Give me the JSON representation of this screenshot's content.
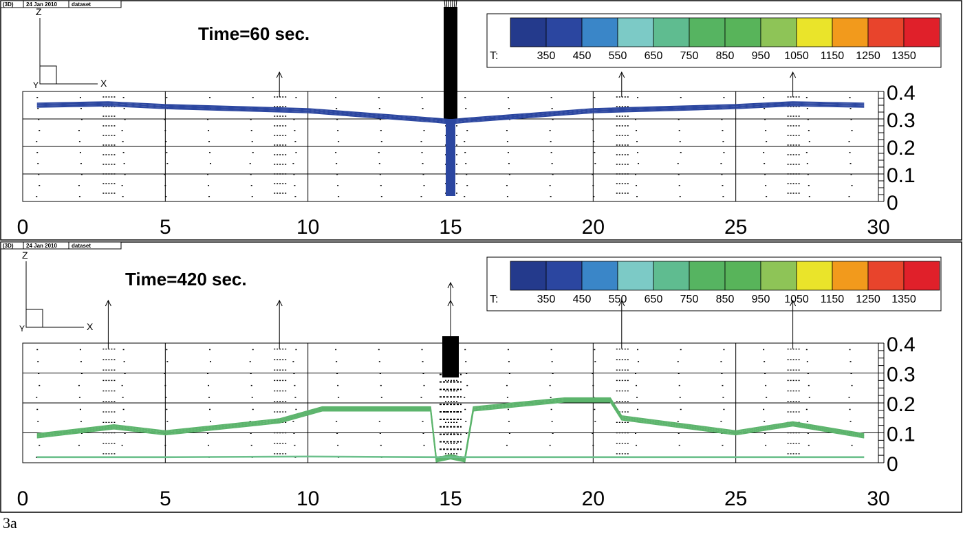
{
  "figure_label": "3a",
  "colors": {
    "series_t60": "#2b46a0",
    "series_t420": "#5cb46c",
    "series_t420_bottom": "#6cc08c",
    "arrow": "#000000"
  },
  "legend": {
    "prefix": "T:",
    "ticks": [
      "350",
      "450",
      "550",
      "650",
      "750",
      "850",
      "950",
      "1050",
      "1150",
      "1250",
      "1350"
    ],
    "colors": [
      "#243a8c",
      "#2b46a0",
      "#3a86c8",
      "#7ccac6",
      "#5fbc90",
      "#56b461",
      "#58b45a",
      "#8ec457",
      "#eae42a",
      "#f29a1c",
      "#e8442c",
      "#e0202a"
    ]
  },
  "chart_data": [
    {
      "type": "line",
      "header": {
        "tag": "(3D)",
        "date": "24 Jan 2010",
        "name": "dataset"
      },
      "title": "Time=60 sec.",
      "axes_triad": {
        "vertical": "Z",
        "horizontal": "X",
        "depth": "Y"
      },
      "xlim": [
        0,
        30
      ],
      "ylim": [
        0,
        0.4
      ],
      "x_ticks": [
        "0",
        "5",
        "10",
        "15",
        "20",
        "25",
        "30"
      ],
      "y_ticks": [
        "0",
        "0.1",
        "0.2",
        "0.3",
        "0.4"
      ],
      "grid": true,
      "series": [
        {
          "color": "#2b46a0",
          "x": [
            0.5,
            3,
            5,
            10,
            14.5,
            15,
            15.5,
            20,
            25,
            27,
            29.5
          ],
          "y": [
            0.35,
            0.355,
            0.345,
            0.33,
            0.295,
            0.29,
            0.295,
            0.33,
            0.345,
            0.355,
            0.35
          ]
        }
      ],
      "jet": {
        "x": 15,
        "y_bottom": 0.02,
        "y_top": 0.35
      },
      "vectors": {
        "columns": [
          3,
          9,
          15,
          21,
          27
        ],
        "tall_arrow_columns": [
          9,
          21,
          27
        ]
      }
    },
    {
      "type": "line",
      "header": {
        "tag": "(3D)",
        "date": "24 Jan 2010",
        "name": "dataset"
      },
      "title": "Time=420 sec.",
      "axes_triad": {
        "vertical": "Z",
        "horizontal": "X",
        "depth": "Y"
      },
      "xlim": [
        0,
        30
      ],
      "ylim": [
        0,
        0.4
      ],
      "x_ticks": [
        "0",
        "5",
        "10",
        "15",
        "20",
        "25",
        "30"
      ],
      "y_ticks": [
        "0",
        "0.1",
        "0.2",
        "0.3",
        "0.4"
      ],
      "grid": true,
      "series": [
        {
          "color": "#5cb46c",
          "x": [
            0.5,
            3.2,
            5,
            9,
            10.5,
            14.3,
            14.5,
            15,
            15.5,
            15.8,
            19,
            20.6,
            21,
            25,
            27,
            29.5
          ],
          "y": [
            0.09,
            0.12,
            0.1,
            0.14,
            0.18,
            0.18,
            0.01,
            0.02,
            0.01,
            0.18,
            0.21,
            0.21,
            0.15,
            0.1,
            0.13,
            0.09
          ]
        },
        {
          "color": "#6cc08c",
          "x": [
            0.5,
            5,
            10,
            14.5,
            15.5,
            20,
            25,
            29.5
          ],
          "y": [
            0.02,
            0.02,
            0.022,
            0.02,
            0.02,
            0.02,
            0.02,
            0.02
          ]
        }
      ],
      "jet": {
        "x": 15,
        "y_bottom": 0.0,
        "y_top": 0.4
      },
      "vectors": {
        "columns": [
          3,
          9,
          15,
          21,
          27
        ],
        "tall_arrow_columns": [
          3,
          9,
          15,
          21,
          27
        ]
      }
    }
  ]
}
